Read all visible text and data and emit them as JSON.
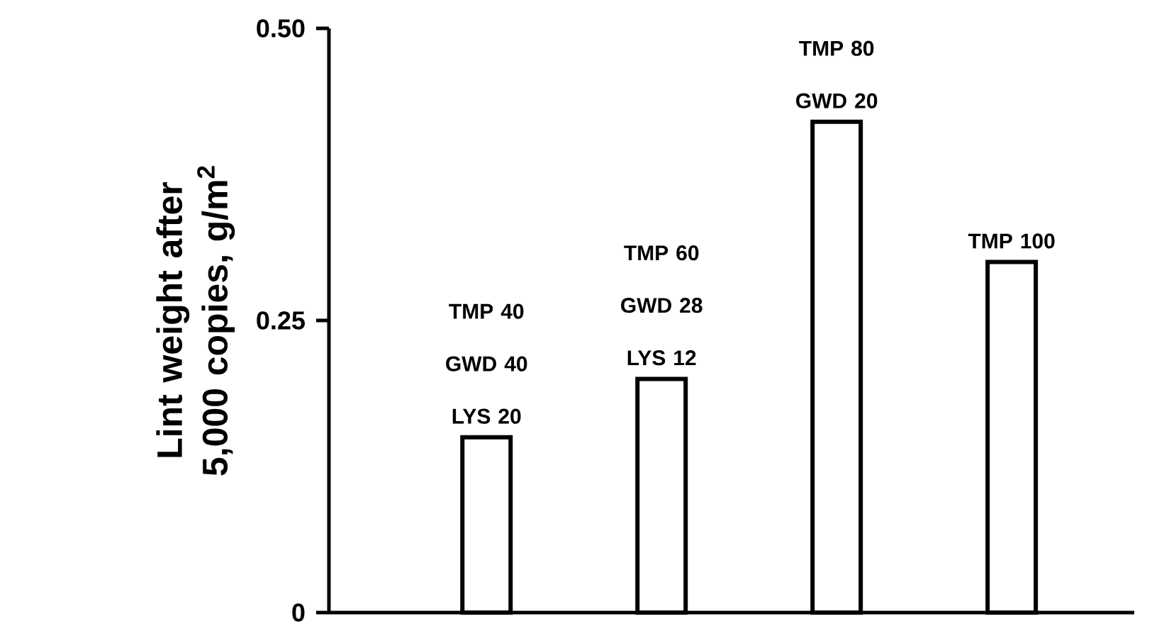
{
  "chart_data": {
    "type": "bar",
    "ylabel": "Lint weight after 5,000 copies, g/m$^{2}$",
    "categories": [
      "TMP 40 GWD 40 LYS 20",
      "TMP 60 GWD 28 LYS 12",
      "TMP 80 GWD 20",
      "TMP 100"
    ],
    "values": [
      0.15,
      0.2,
      0.42,
      0.3
    ],
    "color": "#ffffff",
    "ylim": [
      0,
      0.5
    ],
    "yticks": [
      0,
      {
        "value": 0.25,
        "label": "0.25"
      },
      {
        "value": 0.5,
        "label": "0.50"
      }
    ]
  }
}
